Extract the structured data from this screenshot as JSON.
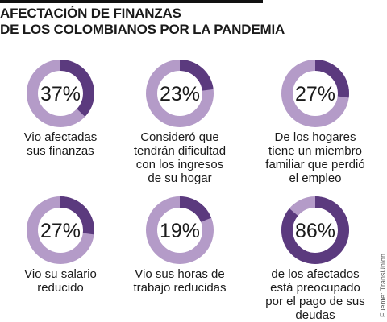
{
  "title": [
    "AFECTACIÓN DE FINANZAS",
    "DE LOS COLOMBIANOS POR LA PANDEMIA"
  ],
  "source": "Fuente: TransUnion",
  "colors": {
    "dark": "#5b3a7e",
    "light": "#b49bc8",
    "text": "#1a1a1a"
  },
  "chart_data": [
    {
      "type": "pie",
      "label": "37%",
      "values": [
        37,
        63
      ],
      "caption": [
        "Vio afectadas",
        "sus finanzas"
      ]
    },
    {
      "type": "pie",
      "label": "23%",
      "values": [
        23,
        77
      ],
      "caption": [
        "Consideró que",
        "tendrán dificultad",
        "con los ingresos",
        "de su hogar"
      ]
    },
    {
      "type": "pie",
      "label": "27%",
      "values": [
        27,
        73
      ],
      "caption": [
        "De los hogares",
        "tiene un miembro",
        "familiar que perdió",
        "el empleo"
      ]
    },
    {
      "type": "pie",
      "label": "27%",
      "values": [
        27,
        73
      ],
      "caption": [
        "Vio su salario",
        "reducido"
      ]
    },
    {
      "type": "pie",
      "label": "19%",
      "values": [
        19,
        81
      ],
      "caption": [
        "Vio sus horas de",
        "trabajo reducidas"
      ]
    },
    {
      "type": "pie",
      "label": "86%",
      "values": [
        86,
        14
      ],
      "caption": [
        "de los afectados",
        "está preocupado",
        "por el pago de sus",
        "deudas"
      ]
    }
  ]
}
